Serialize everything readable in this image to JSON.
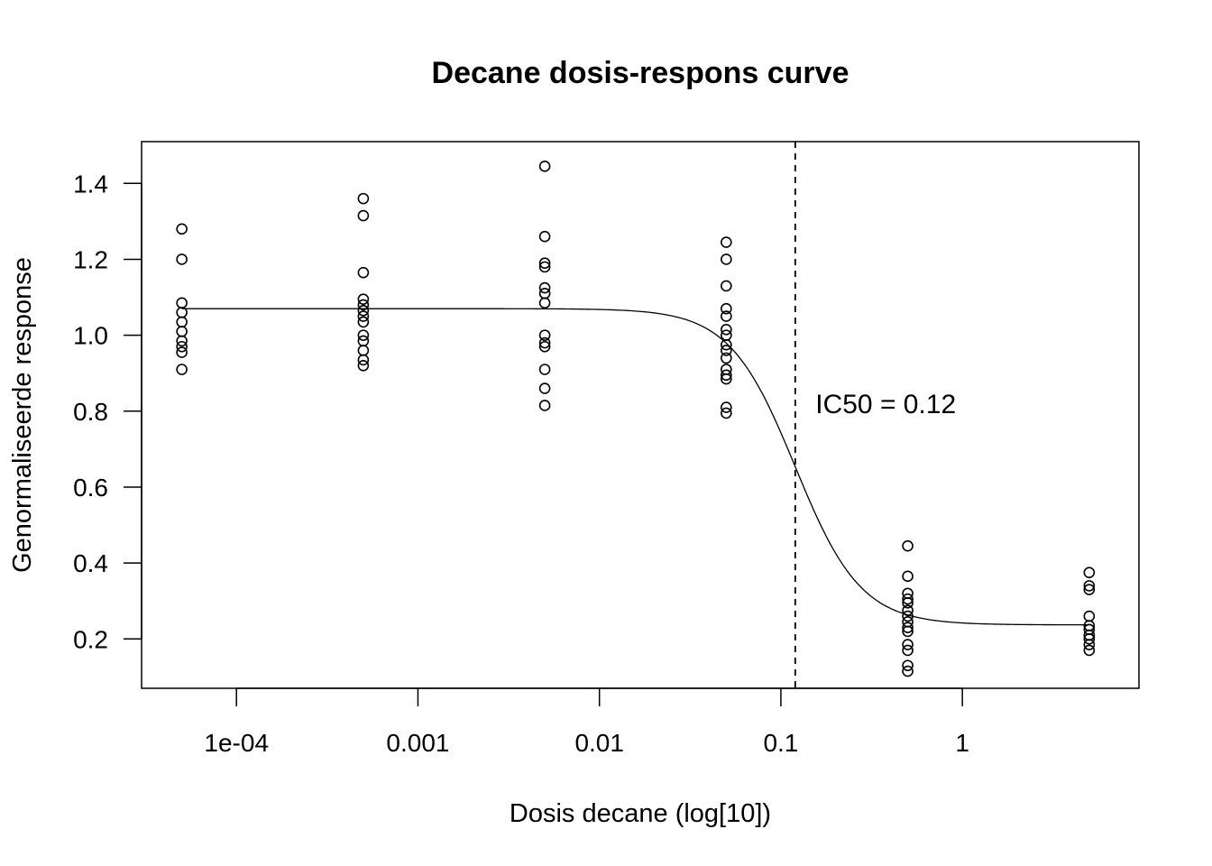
{
  "chart_data": {
    "type": "scatter",
    "title": "Decane dosis-respons curve",
    "xlabel": "Dosis decane (log[10])",
    "ylabel": "Genormaliseerde response",
    "x_scale": "log10",
    "xlim": [
      3e-05,
      9.4
    ],
    "ylim": [
      0.07,
      1.51
    ],
    "x_ticks": [
      {
        "value": 0.0001,
        "label": "1e-04"
      },
      {
        "value": 0.001,
        "label": "0.001"
      },
      {
        "value": 0.01,
        "label": "0.01"
      },
      {
        "value": 0.1,
        "label": "0.1"
      },
      {
        "value": 1,
        "label": "1"
      }
    ],
    "y_ticks": [
      {
        "value": 0.2,
        "label": "0.2"
      },
      {
        "value": 0.4,
        "label": "0.4"
      },
      {
        "value": 0.6,
        "label": "0.6"
      },
      {
        "value": 0.8,
        "label": "0.8"
      },
      {
        "value": 1.0,
        "label": "1.0"
      },
      {
        "value": 1.2,
        "label": "1.2"
      },
      {
        "value": 1.4,
        "label": "1.4"
      }
    ],
    "grid": false,
    "series": [
      {
        "points": [
          {
            "x": 5e-05,
            "y": 1.28
          },
          {
            "x": 5e-05,
            "y": 1.2
          },
          {
            "x": 5e-05,
            "y": 1.085
          },
          {
            "x": 5e-05,
            "y": 1.06
          },
          {
            "x": 5e-05,
            "y": 1.035
          },
          {
            "x": 5e-05,
            "y": 1.01
          },
          {
            "x": 5e-05,
            "y": 0.985
          },
          {
            "x": 5e-05,
            "y": 0.97
          },
          {
            "x": 5e-05,
            "y": 0.955
          },
          {
            "x": 5e-05,
            "y": 0.91
          },
          {
            "x": 0.0005,
            "y": 1.36
          },
          {
            "x": 0.0005,
            "y": 1.315
          },
          {
            "x": 0.0005,
            "y": 1.165
          },
          {
            "x": 0.0005,
            "y": 1.095
          },
          {
            "x": 0.0005,
            "y": 1.08
          },
          {
            "x": 0.0005,
            "y": 1.065
          },
          {
            "x": 0.0005,
            "y": 1.05
          },
          {
            "x": 0.0005,
            "y": 1.035
          },
          {
            "x": 0.0005,
            "y": 1.0
          },
          {
            "x": 0.0005,
            "y": 0.985
          },
          {
            "x": 0.0005,
            "y": 0.96
          },
          {
            "x": 0.0005,
            "y": 0.935
          },
          {
            "x": 0.0005,
            "y": 0.92
          },
          {
            "x": 0.005,
            "y": 1.445
          },
          {
            "x": 0.005,
            "y": 1.26
          },
          {
            "x": 0.005,
            "y": 1.19
          },
          {
            "x": 0.005,
            "y": 1.18
          },
          {
            "x": 0.005,
            "y": 1.125
          },
          {
            "x": 0.005,
            "y": 1.11
          },
          {
            "x": 0.005,
            "y": 1.085
          },
          {
            "x": 0.005,
            "y": 1.0
          },
          {
            "x": 0.005,
            "y": 0.98
          },
          {
            "x": 0.005,
            "y": 0.97
          },
          {
            "x": 0.005,
            "y": 0.91
          },
          {
            "x": 0.005,
            "y": 0.86
          },
          {
            "x": 0.005,
            "y": 0.815
          },
          {
            "x": 0.05,
            "y": 1.245
          },
          {
            "x": 0.05,
            "y": 1.2
          },
          {
            "x": 0.05,
            "y": 1.13
          },
          {
            "x": 0.05,
            "y": 1.07
          },
          {
            "x": 0.05,
            "y": 1.05
          },
          {
            "x": 0.05,
            "y": 1.015
          },
          {
            "x": 0.05,
            "y": 1.0
          },
          {
            "x": 0.05,
            "y": 0.975
          },
          {
            "x": 0.05,
            "y": 0.96
          },
          {
            "x": 0.05,
            "y": 0.94
          },
          {
            "x": 0.05,
            "y": 0.91
          },
          {
            "x": 0.05,
            "y": 0.895
          },
          {
            "x": 0.05,
            "y": 0.885
          },
          {
            "x": 0.05,
            "y": 0.81
          },
          {
            "x": 0.05,
            "y": 0.795
          },
          {
            "x": 0.5,
            "y": 0.445
          },
          {
            "x": 0.5,
            "y": 0.365
          },
          {
            "x": 0.5,
            "y": 0.32
          },
          {
            "x": 0.5,
            "y": 0.305
          },
          {
            "x": 0.5,
            "y": 0.295
          },
          {
            "x": 0.5,
            "y": 0.275
          },
          {
            "x": 0.5,
            "y": 0.26
          },
          {
            "x": 0.5,
            "y": 0.245
          },
          {
            "x": 0.5,
            "y": 0.23
          },
          {
            "x": 0.5,
            "y": 0.22
          },
          {
            "x": 0.5,
            "y": 0.185
          },
          {
            "x": 0.5,
            "y": 0.17
          },
          {
            "x": 0.5,
            "y": 0.13
          },
          {
            "x": 0.5,
            "y": 0.115
          },
          {
            "x": 5,
            "y": 0.375
          },
          {
            "x": 5,
            "y": 0.34
          },
          {
            "x": 5,
            "y": 0.33
          },
          {
            "x": 5,
            "y": 0.26
          },
          {
            "x": 5,
            "y": 0.235
          },
          {
            "x": 5,
            "y": 0.225
          },
          {
            "x": 5,
            "y": 0.21
          },
          {
            "x": 5,
            "y": 0.2
          },
          {
            "x": 5,
            "y": 0.185
          },
          {
            "x": 5,
            "y": 0.17
          }
        ]
      }
    ],
    "fit_curve": {
      "type": "4-parameter log-logistic",
      "top": 1.07,
      "bottom": 0.237,
      "ic50": 0.12,
      "hill": 2.4,
      "x_range": [
        5e-05,
        5
      ]
    },
    "reference_line": {
      "x": 0.12,
      "style": "dashed",
      "orientation": "vertical"
    },
    "annotation": {
      "text": "IC50 = 0.12",
      "x": 0.155,
      "y": 0.795
    }
  }
}
